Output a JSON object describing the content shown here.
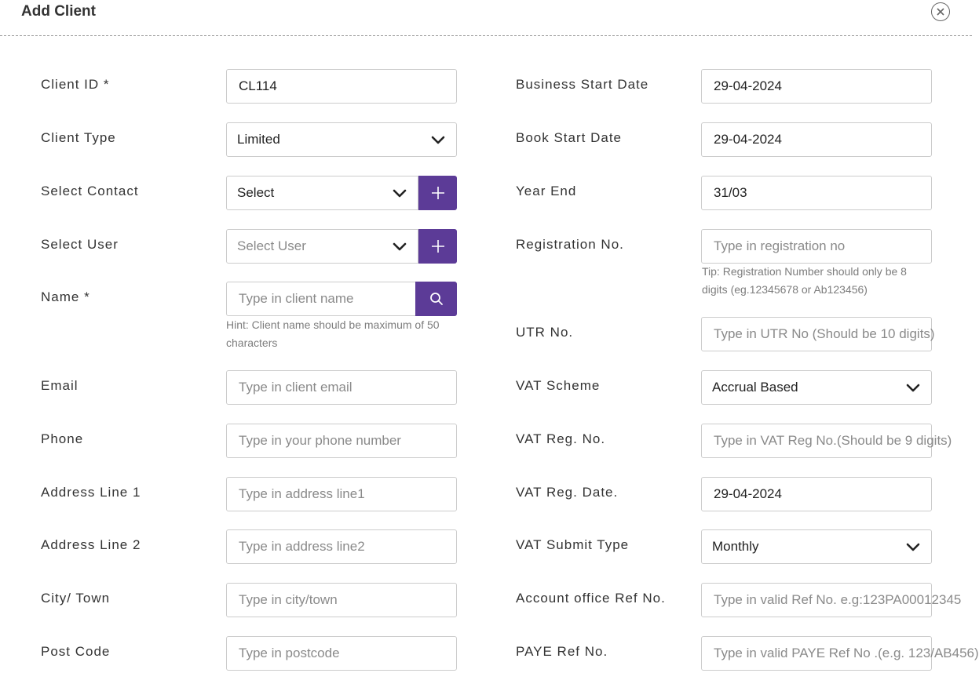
{
  "header": {
    "title": "Add Client",
    "close_icon": "close-circle-icon"
  },
  "left": {
    "client_id": {
      "label": "Client ID *",
      "value": "CL114"
    },
    "client_type": {
      "label": "Client Type",
      "value": "Limited"
    },
    "select_contact": {
      "label": "Select Contact",
      "value": "Select",
      "add_icon": "plus-icon"
    },
    "select_user": {
      "label": "Select User",
      "placeholder": "Select User",
      "add_icon": "plus-icon"
    },
    "name": {
      "label": "Name *",
      "placeholder": "Type in client name",
      "search_icon": "search-icon",
      "hint_line1": "Hint: Client name should be maximum of 50",
      "hint_line2": "characters"
    },
    "email": {
      "label": "Email",
      "placeholder": "Type in client email"
    },
    "phone": {
      "label": "Phone",
      "placeholder": "Type in your phone number"
    },
    "address1": {
      "label": "Address Line 1",
      "placeholder": "Type in address line1"
    },
    "address2": {
      "label": "Address Line 2",
      "placeholder": "Type in address line2"
    },
    "city": {
      "label": "City/ Town",
      "placeholder": "Type in city/town"
    },
    "postcode": {
      "label": "Post Code",
      "placeholder": "Type in postcode"
    }
  },
  "right": {
    "business_start_date": {
      "label": "Business Start Date",
      "value": "29-04-2024"
    },
    "book_start_date": {
      "label": "Book Start Date",
      "value": "29-04-2024"
    },
    "year_end": {
      "label": "Year End",
      "value": "31/03"
    },
    "registration_no": {
      "label": "Registration No.",
      "placeholder": "Type in registration no",
      "tip_line1": "Tip: Registration Number should only be 8",
      "tip_line2": "digits (eg.12345678 or Ab123456)"
    },
    "utr_no": {
      "label": "UTR No.",
      "placeholder": "Type in UTR No (Should be 10 digits)"
    },
    "vat_scheme": {
      "label": "VAT Scheme",
      "value": "Accrual Based"
    },
    "vat_reg_no": {
      "label": "VAT Reg. No.",
      "placeholder": "Type in VAT Reg No.(Should be 9 digits)"
    },
    "vat_reg_date": {
      "label": "VAT Reg. Date.",
      "value": "29-04-2024"
    },
    "vat_submit_type": {
      "label": "VAT Submit Type",
      "value": "Monthly"
    },
    "account_office_ref": {
      "label": "Account office Ref No.",
      "placeholder": "Type in valid Ref No. e.g:123PA00012345"
    },
    "paye_ref": {
      "label": "PAYE Ref No.",
      "placeholder": "Type in valid PAYE Ref No .(e.g. 123/AB456)"
    }
  },
  "colors": {
    "accent": "#5c3b97",
    "border": "#cccccc",
    "label": "#333333",
    "placeholder": "#8a8a8a"
  }
}
